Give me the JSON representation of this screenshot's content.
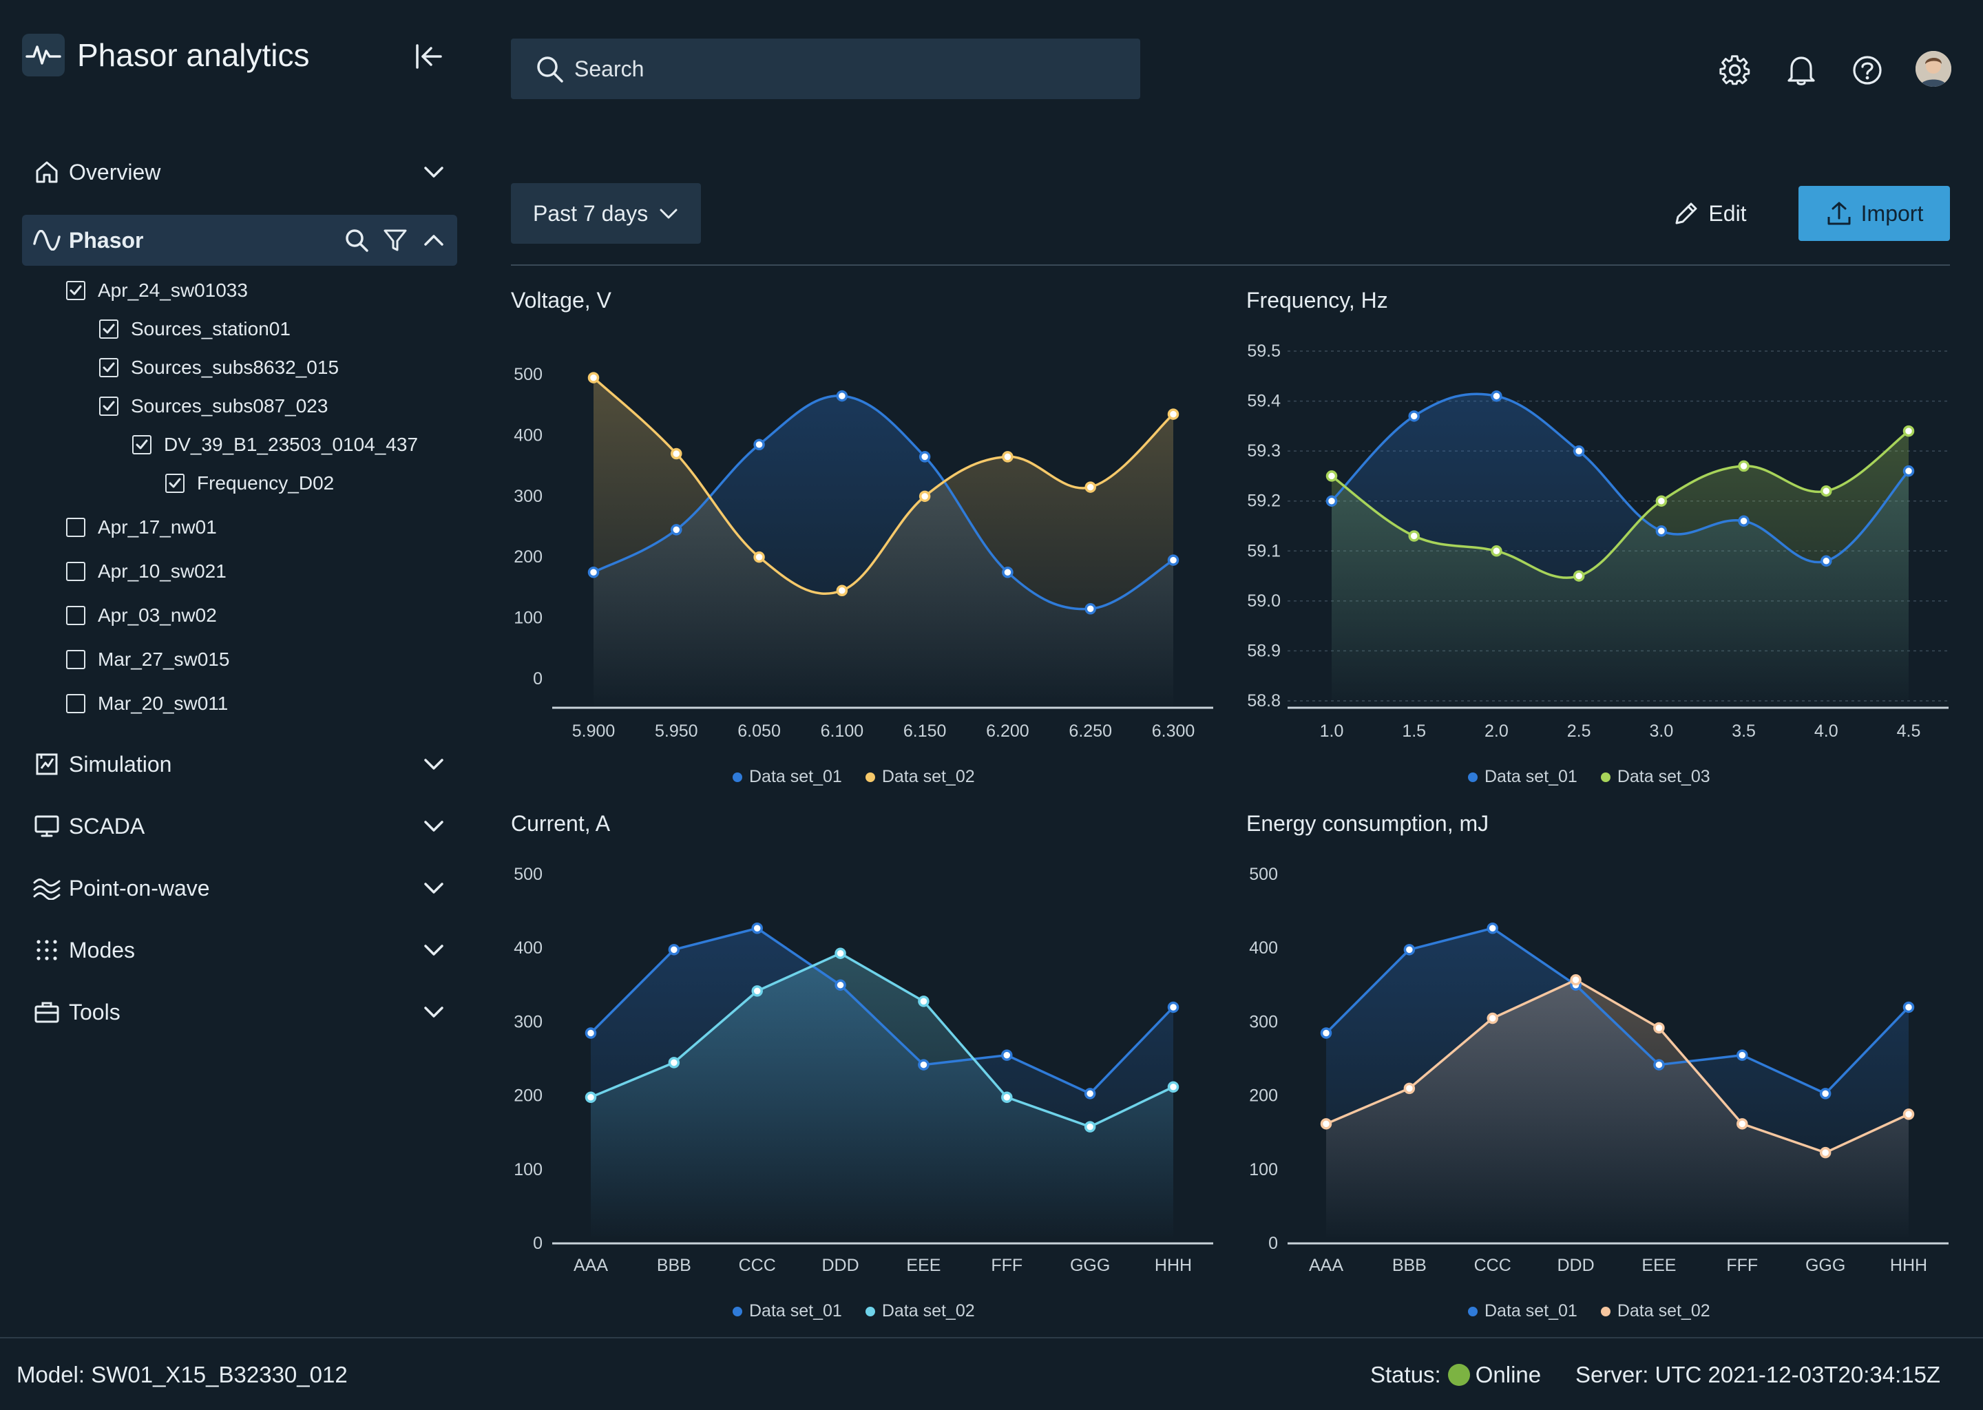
{
  "app": {
    "title": "Phasor analytics"
  },
  "search": {
    "placeholder": "Search"
  },
  "nav": {
    "overview": "Overview",
    "phasor": "Phasor",
    "simulation": "Simulation",
    "scada": "SCADA",
    "point_on_wave": "Point-on-wave",
    "modes": "Modes",
    "tools": "Tools"
  },
  "tree": [
    {
      "label": "Apr_24_sw01033",
      "checked": true,
      "level": 0
    },
    {
      "label": "Sources_station01",
      "checked": true,
      "level": 1
    },
    {
      "label": "Sources_subs8632_015",
      "checked": true,
      "level": 1
    },
    {
      "label": "Sources_subs087_023",
      "checked": true,
      "level": 1
    },
    {
      "label": "DV_39_B1_23503_0104_437",
      "checked": true,
      "level": 2
    },
    {
      "label": "Frequency_D02",
      "checked": true,
      "level": 3
    },
    {
      "label": "Apr_17_nw01",
      "checked": false,
      "level": 0
    },
    {
      "label": "Apr_10_sw021",
      "checked": false,
      "level": 0
    },
    {
      "label": "Apr_03_nw02",
      "checked": false,
      "level": 0
    },
    {
      "label": "Mar_27_sw015",
      "checked": false,
      "level": 0
    },
    {
      "label": "Mar_20_sw011",
      "checked": false,
      "level": 0
    }
  ],
  "toolbar": {
    "range_label": "Past 7 days",
    "edit_label": "Edit",
    "import_label": "Import"
  },
  "footer": {
    "model": "Model: SW01_X15_B32330_012",
    "status_label": "Status:",
    "status_value": "Online",
    "server": "Server: UTC 2021-12-03T20:34:15Z"
  },
  "colors": {
    "blue": "#2f7bd9",
    "yellow": "#f6c96a",
    "green": "#a8d45a",
    "cyan": "#6fd3ea",
    "peach": "#f6c7a0",
    "accent": "#3a9ed8",
    "online": "#7cb342"
  },
  "chart_data": [
    {
      "type": "area",
      "title": "Voltage, V",
      "categories": [
        "5.900",
        "5.950",
        "6.050",
        "6.100",
        "6.150",
        "6.200",
        "6.250",
        "6.300"
      ],
      "ylim": [
        -50,
        550
      ],
      "yticks": [
        0,
        100,
        200,
        300,
        400,
        500
      ],
      "smooth": true,
      "grid": false,
      "legend": "bottom",
      "series": [
        {
          "name": "Data set_01",
          "color": "#2f7bd9",
          "values": [
            175,
            245,
            385,
            465,
            365,
            175,
            115,
            195
          ]
        },
        {
          "name": "Data set_02",
          "color": "#f6c96a",
          "values": [
            495,
            370,
            200,
            145,
            300,
            365,
            315,
            435
          ]
        }
      ]
    },
    {
      "type": "area",
      "title": "Frequency, Hz",
      "categories": [
        "1.0",
        "1.5",
        "2.0",
        "2.5",
        "3.0",
        "3.5",
        "4.0",
        "4.5"
      ],
      "ylim": [
        58.8,
        59.5
      ],
      "yticks": [
        58.8,
        58.9,
        59.0,
        59.1,
        59.2,
        59.3,
        59.4,
        59.5
      ],
      "smooth": true,
      "grid": true,
      "legend": "bottom",
      "series": [
        {
          "name": "Data set_01",
          "color": "#2f7bd9",
          "values": [
            59.2,
            59.37,
            59.41,
            59.3,
            59.14,
            59.16,
            59.08,
            59.26
          ]
        },
        {
          "name": "Data set_03",
          "color": "#a8d45a",
          "values": [
            59.25,
            59.13,
            59.1,
            59.05,
            59.2,
            59.27,
            59.22,
            59.34
          ]
        }
      ]
    },
    {
      "type": "area",
      "title": "Current, A",
      "categories": [
        "AAA",
        "BBB",
        "CCC",
        "DDD",
        "EEE",
        "FFF",
        "GGG",
        "HHH"
      ],
      "ylim": [
        0,
        500
      ],
      "yticks": [
        0,
        100,
        200,
        300,
        400,
        500
      ],
      "smooth": false,
      "grid": false,
      "legend": "bottom",
      "series": [
        {
          "name": "Data set_01",
          "color": "#2f7bd9",
          "values": [
            285,
            398,
            427,
            350,
            242,
            255,
            203,
            320
          ]
        },
        {
          "name": "Data set_02",
          "color": "#6fd3ea",
          "values": [
            198,
            245,
            342,
            393,
            328,
            198,
            158,
            212
          ]
        }
      ]
    },
    {
      "type": "area",
      "title": "Energy consumption, mJ",
      "categories": [
        "AAA",
        "BBB",
        "CCC",
        "DDD",
        "EEE",
        "FFF",
        "GGG",
        "HHH"
      ],
      "ylim": [
        0,
        500
      ],
      "yticks": [
        0,
        100,
        200,
        300,
        400,
        500
      ],
      "smooth": false,
      "grid": false,
      "legend": "bottom",
      "series": [
        {
          "name": "Data set_01",
          "color": "#2f7bd9",
          "values": [
            285,
            398,
            427,
            350,
            242,
            255,
            203,
            320
          ]
        },
        {
          "name": "Data set_02",
          "color": "#f6c7a0",
          "values": [
            162,
            210,
            305,
            357,
            292,
            162,
            123,
            175
          ]
        }
      ]
    }
  ]
}
